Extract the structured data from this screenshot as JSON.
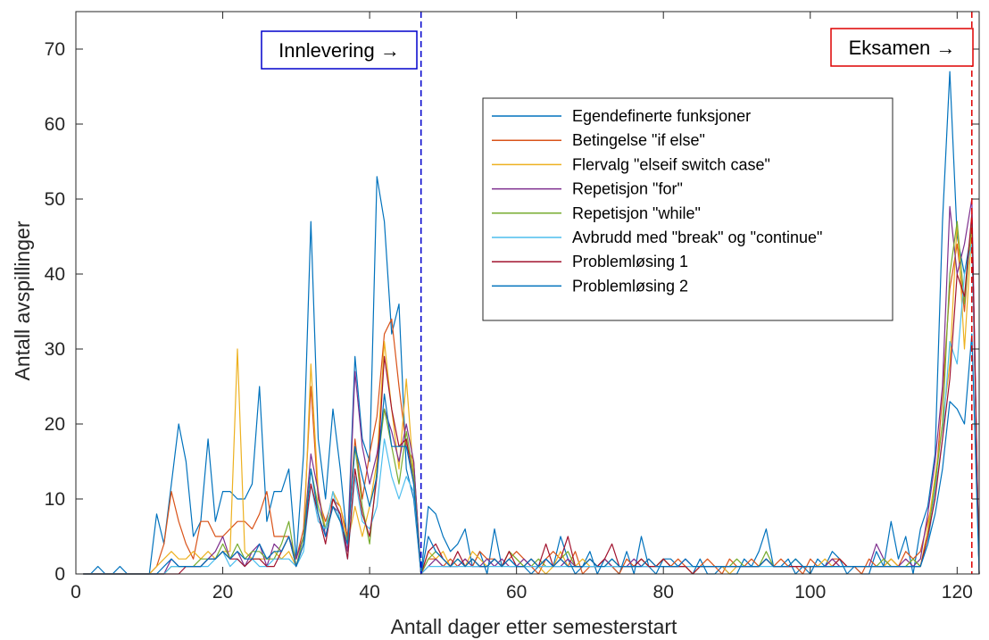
{
  "chart_data": {
    "type": "line",
    "xlabel": "Antall dager etter semesterstart",
    "ylabel": "Antall avspillinger",
    "xlim": [
      0,
      123
    ],
    "ylim": [
      0,
      75
    ],
    "xticks": [
      0,
      20,
      40,
      60,
      80,
      100,
      120
    ],
    "yticks": [
      0,
      10,
      20,
      30,
      40,
      50,
      60,
      70
    ],
    "grid": false,
    "legend_position": "upper-right-inside",
    "annotations": [
      {
        "text": "Innlevering →",
        "x": 47,
        "color": "#0000cc",
        "line_color": "#0000cc",
        "line_style": "dashed"
      },
      {
        "text": "Eksamen →",
        "x": 122,
        "color": "#dd0000",
        "line_color": "#dd0000",
        "line_style": "dashed"
      }
    ],
    "x": [
      1,
      2,
      3,
      4,
      5,
      6,
      7,
      8,
      9,
      10,
      11,
      12,
      13,
      14,
      15,
      16,
      17,
      18,
      19,
      20,
      21,
      22,
      23,
      24,
      25,
      26,
      27,
      28,
      29,
      30,
      31,
      32,
      33,
      34,
      35,
      36,
      37,
      38,
      39,
      40,
      41,
      42,
      43,
      44,
      45,
      46,
      47,
      48,
      49,
      50,
      51,
      52,
      53,
      54,
      55,
      56,
      57,
      58,
      59,
      60,
      61,
      62,
      63,
      64,
      65,
      66,
      67,
      68,
      69,
      70,
      71,
      72,
      73,
      74,
      75,
      76,
      77,
      78,
      79,
      80,
      81,
      82,
      83,
      84,
      85,
      86,
      87,
      88,
      89,
      90,
      91,
      92,
      93,
      94,
      95,
      96,
      97,
      98,
      99,
      100,
      101,
      102,
      103,
      104,
      105,
      106,
      107,
      108,
      109,
      110,
      111,
      112,
      113,
      114,
      115,
      116,
      117,
      118,
      119,
      120,
      121,
      122,
      123
    ],
    "series": [
      {
        "name": "Egendefinerte funksjoner",
        "color": "#0072bd",
        "values": [
          0,
          0,
          1,
          0,
          0,
          1,
          0,
          0,
          0,
          0,
          8,
          4,
          12,
          20,
          15,
          5,
          7,
          18,
          7,
          11,
          11,
          10,
          10,
          12,
          25,
          7,
          11,
          11,
          14,
          2,
          16,
          47,
          18,
          10,
          22,
          14,
          4,
          29,
          18,
          15,
          53,
          47,
          32,
          36,
          14,
          10,
          0,
          9,
          8,
          5,
          3,
          4,
          6,
          1,
          3,
          0,
          6,
          1,
          2,
          1,
          1,
          0,
          1,
          2,
          1,
          5,
          2,
          0,
          1,
          3,
          0,
          2,
          1,
          0,
          3,
          0,
          5,
          1,
          0,
          2,
          2,
          1,
          1,
          0,
          2,
          0,
          0,
          1,
          0,
          0,
          2,
          1,
          3,
          6,
          1,
          1,
          2,
          0,
          1,
          0,
          2,
          1,
          3,
          2,
          0,
          1,
          0,
          0,
          3,
          1,
          7,
          2,
          5,
          0,
          6,
          9,
          16,
          47,
          67,
          45,
          40,
          46,
          0
        ]
      },
      {
        "name": "Betingelse \"if else\"",
        "color": "#d95319",
        "values": [
          0,
          0,
          0,
          0,
          0,
          0,
          0,
          0,
          0,
          0,
          1,
          4,
          11,
          7,
          4,
          2,
          7,
          7,
          5,
          5,
          6,
          7,
          7,
          6,
          8,
          11,
          5,
          5,
          5,
          2,
          6,
          25,
          10,
          7,
          10,
          9,
          5,
          18,
          10,
          16,
          21,
          32,
          34,
          25,
          17,
          15,
          0,
          2,
          2,
          1,
          2,
          1,
          2,
          1,
          3,
          2,
          2,
          1,
          2,
          3,
          2,
          1,
          0,
          2,
          3,
          2,
          1,
          3,
          0,
          1,
          1,
          2,
          1,
          0,
          2,
          1,
          1,
          2,
          1,
          1,
          1,
          2,
          1,
          0,
          1,
          2,
          1,
          0,
          2,
          1,
          1,
          2,
          1,
          2,
          1,
          2,
          1,
          1,
          0,
          2,
          1,
          1,
          2,
          2,
          1,
          1,
          0,
          2,
          1,
          1,
          2,
          1,
          3,
          2,
          3,
          7,
          11,
          24,
          38,
          44,
          35,
          48,
          0
        ]
      },
      {
        "name": "Flervalg \"elseif switch case\"",
        "color": "#edb120",
        "values": [
          0,
          0,
          0,
          0,
          0,
          0,
          0,
          0,
          0,
          0,
          1,
          2,
          3,
          2,
          2,
          3,
          2,
          3,
          2,
          3,
          3,
          30,
          3,
          2,
          2,
          2,
          3,
          2,
          3,
          1,
          4,
          28,
          11,
          6,
          11,
          9,
          4,
          9,
          5,
          9,
          15,
          31,
          22,
          14,
          26,
          13,
          0,
          3,
          2,
          3,
          1,
          2,
          1,
          3,
          2,
          1,
          2,
          1,
          3,
          2,
          1,
          2,
          1,
          0,
          1,
          3,
          1,
          1,
          2,
          1,
          1,
          2,
          1,
          1,
          1,
          1,
          2,
          1,
          1,
          2,
          1,
          1,
          1,
          0,
          1,
          1,
          1,
          1,
          0,
          1,
          1,
          1,
          1,
          2,
          1,
          1,
          1,
          1,
          1,
          1,
          1,
          2,
          1,
          2,
          1,
          1,
          1,
          1,
          1,
          1,
          2,
          1,
          1,
          2,
          1,
          6,
          13,
          20,
          28,
          47,
          30,
          46,
          0
        ]
      },
      {
        "name": "Repetisjon \"for\"",
        "color": "#7e2f8e",
        "values": [
          0,
          0,
          0,
          0,
          0,
          0,
          0,
          0,
          0,
          0,
          0,
          0,
          2,
          1,
          1,
          1,
          1,
          2,
          3,
          5,
          2,
          3,
          1,
          3,
          4,
          1,
          4,
          3,
          5,
          2,
          5,
          16,
          11,
          5,
          9,
          8,
          3,
          27,
          17,
          12,
          16,
          22,
          19,
          15,
          20,
          15,
          0,
          1,
          2,
          1,
          1,
          1,
          2,
          1,
          1,
          2,
          1,
          2,
          1,
          1,
          2,
          1,
          1,
          2,
          1,
          1,
          2,
          1,
          1,
          1,
          1,
          2,
          1,
          1,
          1,
          2,
          1,
          1,
          1,
          1,
          1,
          1,
          2,
          1,
          1,
          1,
          1,
          1,
          1,
          1,
          1,
          1,
          1,
          2,
          1,
          1,
          1,
          1,
          1,
          1,
          1,
          1,
          2,
          1,
          1,
          1,
          1,
          1,
          4,
          2,
          1,
          1,
          2,
          1,
          2,
          8,
          15,
          25,
          49,
          40,
          44,
          50,
          0
        ]
      },
      {
        "name": "Repetisjon \"while\"",
        "color": "#77ac30",
        "values": [
          0,
          0,
          0,
          0,
          0,
          0,
          0,
          0,
          0,
          0,
          0,
          0,
          1,
          1,
          1,
          1,
          2,
          2,
          2,
          4,
          2,
          4,
          2,
          3,
          3,
          2,
          2,
          4,
          7,
          1,
          5,
          14,
          9,
          6,
          9,
          7,
          4,
          17,
          9,
          4,
          14,
          22,
          17,
          12,
          19,
          13,
          0,
          2,
          3,
          2,
          1,
          2,
          1,
          2,
          1,
          1,
          2,
          1,
          3,
          2,
          1,
          1,
          2,
          1,
          1,
          2,
          3,
          1,
          1,
          2,
          1,
          1,
          2,
          1,
          1,
          1,
          2,
          1,
          1,
          2,
          1,
          1,
          1,
          1,
          1,
          1,
          1,
          1,
          1,
          2,
          1,
          1,
          1,
          3,
          1,
          1,
          1,
          2,
          1,
          1,
          1,
          1,
          1,
          1,
          1,
          1,
          1,
          1,
          1,
          2,
          1,
          1,
          1,
          2,
          1,
          5,
          12,
          20,
          40,
          47,
          36,
          47,
          0
        ]
      },
      {
        "name": "Avbrudd med \"break\" og \"continue\"",
        "color": "#4dbeee",
        "values": [
          0,
          0,
          0,
          0,
          0,
          0,
          0,
          0,
          0,
          0,
          0,
          0,
          1,
          1,
          1,
          1,
          1,
          1,
          2,
          3,
          1,
          2,
          1,
          2,
          1,
          1,
          2,
          2,
          2,
          1,
          3,
          12,
          7,
          6,
          11,
          7,
          2,
          13,
          7,
          6,
          9,
          18,
          13,
          10,
          13,
          11,
          0,
          1,
          1,
          1,
          1,
          1,
          1,
          1,
          1,
          1,
          1,
          1,
          1,
          1,
          1,
          1,
          1,
          1,
          1,
          1,
          1,
          1,
          1,
          1,
          1,
          1,
          1,
          1,
          1,
          1,
          1,
          1,
          1,
          1,
          1,
          1,
          1,
          1,
          1,
          1,
          1,
          1,
          1,
          1,
          1,
          1,
          1,
          1,
          1,
          1,
          1,
          1,
          1,
          1,
          1,
          1,
          1,
          1,
          1,
          1,
          1,
          1,
          1,
          1,
          1,
          1,
          1,
          1,
          1,
          4,
          11,
          18,
          31,
          28,
          40,
          44,
          0
        ]
      },
      {
        "name": "Problemløsing 1",
        "color": "#a2142f",
        "values": [
          0,
          0,
          0,
          0,
          0,
          0,
          0,
          0,
          0,
          0,
          0,
          0,
          0,
          0,
          1,
          1,
          1,
          2,
          2,
          3,
          2,
          2,
          1,
          2,
          2,
          1,
          1,
          3,
          5,
          1,
          4,
          12,
          8,
          4,
          10,
          8,
          2,
          14,
          8,
          5,
          13,
          29,
          22,
          17,
          18,
          12,
          0,
          3,
          4,
          2,
          1,
          3,
          1,
          2,
          1,
          1,
          2,
          1,
          3,
          1,
          1,
          2,
          1,
          4,
          1,
          2,
          5,
          1,
          1,
          2,
          1,
          2,
          4,
          1,
          1,
          1,
          2,
          1,
          1,
          2,
          1,
          1,
          1,
          0,
          1,
          1,
          1,
          1,
          1,
          1,
          1,
          1,
          1,
          2,
          1,
          1,
          1,
          1,
          1,
          1,
          1,
          1,
          1,
          2,
          1,
          1,
          1,
          1,
          1,
          1,
          1,
          1,
          1,
          1,
          1,
          5,
          10,
          18,
          26,
          40,
          37,
          48,
          0
        ]
      },
      {
        "name": "Problemløsing 2",
        "color": "#0072bd",
        "values": [
          0,
          0,
          0,
          0,
          0,
          0,
          0,
          0,
          0,
          0,
          0,
          1,
          2,
          1,
          1,
          1,
          1,
          2,
          2,
          3,
          2,
          3,
          2,
          2,
          4,
          2,
          3,
          3,
          5,
          1,
          4,
          14,
          8,
          5,
          9,
          7,
          4,
          17,
          13,
          9,
          13,
          24,
          17,
          17,
          17,
          12,
          0,
          5,
          3,
          2,
          1,
          2,
          1,
          2,
          1,
          1,
          2,
          1,
          2,
          1,
          1,
          2,
          1,
          2,
          1,
          2,
          1,
          1,
          1,
          2,
          1,
          1,
          2,
          1,
          1,
          1,
          1,
          2,
          1,
          1,
          1,
          1,
          2,
          1,
          1,
          1,
          1,
          1,
          1,
          1,
          1,
          1,
          1,
          2,
          1,
          1,
          1,
          2,
          1,
          1,
          1,
          1,
          1,
          1,
          1,
          1,
          1,
          1,
          1,
          1,
          1,
          1,
          1,
          1,
          1,
          4,
          8,
          14,
          23,
          22,
          20,
          32,
          0
        ]
      }
    ]
  }
}
